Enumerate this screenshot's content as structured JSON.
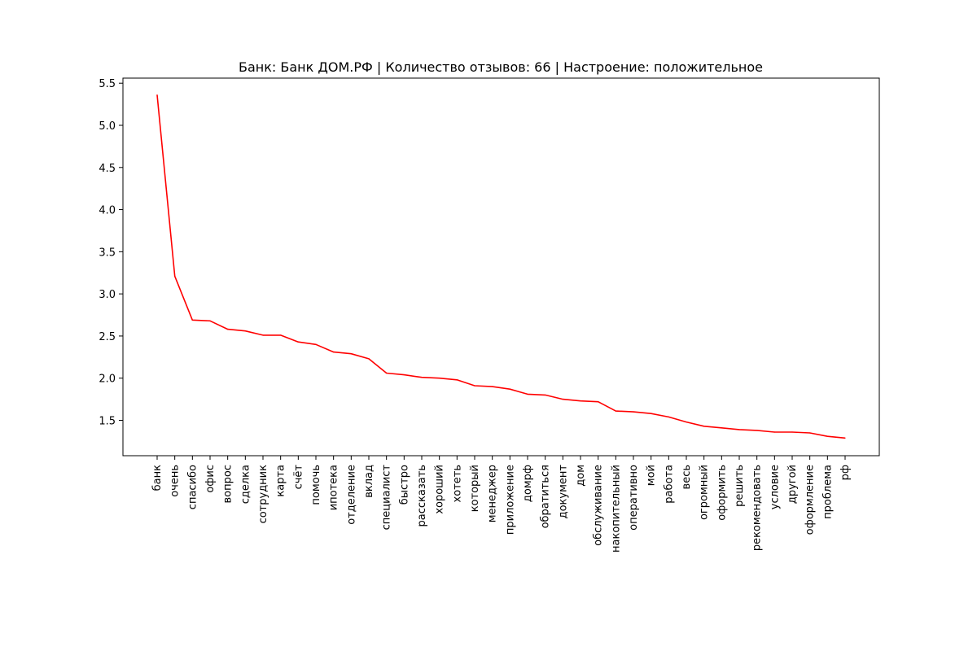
{
  "chart_data": {
    "type": "line",
    "title": "Банк: Банк ДОМ.РФ | Количество отзывов: 66 | Настроение: положительное",
    "xlabel": "",
    "ylabel": "",
    "ylim": [
      1.08,
      5.56
    ],
    "yticks": [
      "1.5",
      "2.0",
      "2.5",
      "3.0",
      "3.5",
      "4.0",
      "4.5",
      "5.0",
      "5.5"
    ],
    "grid": false,
    "line_color": "#ff0000",
    "categories": [
      "банк",
      "очень",
      "спасибо",
      "офис",
      "вопрос",
      "сделка",
      "сотрудник",
      "карта",
      "счёт",
      "помочь",
      "ипотека",
      "отделение",
      "вклад",
      "специалист",
      "быстро",
      "рассказать",
      "хороший",
      "хотеть",
      "который",
      "менеджер",
      "приложение",
      "домрф",
      "обратиться",
      "документ",
      "дом",
      "обслуживание",
      "накопительный",
      "оперативно",
      "мой",
      "работа",
      "весь",
      "огромный",
      "оформить",
      "решить",
      "рекомендовать",
      "условие",
      "другой",
      "оформление",
      "проблема",
      "рф"
    ],
    "series": [
      {
        "values": [
          5.36,
          3.21,
          2.69,
          2.68,
          2.58,
          2.56,
          2.51,
          2.51,
          2.43,
          2.4,
          2.31,
          2.29,
          2.23,
          2.06,
          2.04,
          2.01,
          2.0,
          1.98,
          1.91,
          1.9,
          1.87,
          1.81,
          1.8,
          1.75,
          1.73,
          1.72,
          1.61,
          1.6,
          1.58,
          1.54,
          1.48,
          1.43,
          1.41,
          1.39,
          1.38,
          1.36,
          1.36,
          1.35,
          1.31,
          1.29
        ]
      }
    ]
  }
}
